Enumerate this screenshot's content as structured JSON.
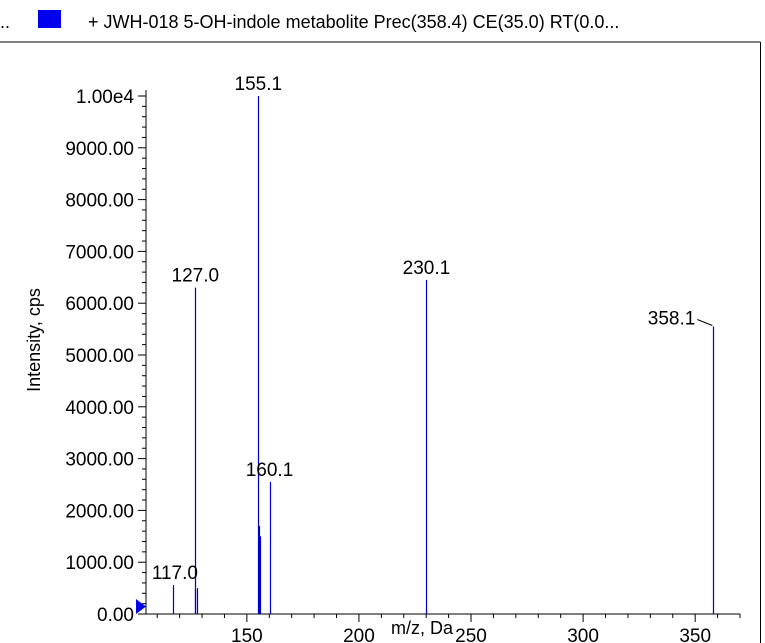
{
  "header": {
    "prefix": "..",
    "title": "+ JWH-018 5-OH-indole metabolite Prec(358.4) CE(35.0) RT(0.0...",
    "legend_color": "#0000ee"
  },
  "chart_data": {
    "type": "bar",
    "title": "+ JWH-018 5-OH-indole metabolite Prec(358.4) CE(35.0) RT(0.0...",
    "xlabel": "m/z, Da",
    "ylabel": "Intensity, cps",
    "xlim": [
      105,
      370
    ],
    "ylim": [
      0,
      10000
    ],
    "x_ticks": [
      150,
      200,
      250,
      300,
      350
    ],
    "y_ticks": [
      {
        "value": 0,
        "label": "0.00"
      },
      {
        "value": 1000,
        "label": "1000.00"
      },
      {
        "value": 2000,
        "label": "2000.00"
      },
      {
        "value": 3000,
        "label": "3000.00"
      },
      {
        "value": 4000,
        "label": "4000.00"
      },
      {
        "value": 5000,
        "label": "5000.00"
      },
      {
        "value": 6000,
        "label": "6000.00"
      },
      {
        "value": 7000,
        "label": "7000.00"
      },
      {
        "value": 8000,
        "label": "8000.00"
      },
      {
        "value": 9000,
        "label": "9000.00"
      },
      {
        "value": 10000,
        "label": "1.00e4"
      }
    ],
    "peak_color": "#0000cc",
    "peaks": [
      {
        "mz": 117.0,
        "intensity": 560
      },
      {
        "mz": 126.8,
        "intensity": 470
      },
      {
        "mz": 127.0,
        "intensity": 6300
      },
      {
        "mz": 127.6,
        "intensity": 500
      },
      {
        "mz": 155.1,
        "intensity": 10000
      },
      {
        "mz": 155.5,
        "intensity": 1700
      },
      {
        "mz": 156.0,
        "intensity": 1500
      },
      {
        "mz": 160.1,
        "intensity": 2550
      },
      {
        "mz": 230.1,
        "intensity": 6450
      },
      {
        "mz": 358.1,
        "intensity": 5550
      }
    ],
    "peak_labels": [
      {
        "text": "117.0",
        "mz": 117.0,
        "intensity": 560
      },
      {
        "text": "127.0",
        "mz": 127.0,
        "intensity": 6300
      },
      {
        "text": "155.1",
        "mz": 155.1,
        "intensity": 10000
      },
      {
        "text": "160.1",
        "mz": 160.1,
        "intensity": 2550
      },
      {
        "text": "230.1",
        "mz": 230.1,
        "intensity": 6450
      },
      {
        "text": "358.1",
        "mz": 358.1,
        "intensity": 5550
      }
    ]
  }
}
